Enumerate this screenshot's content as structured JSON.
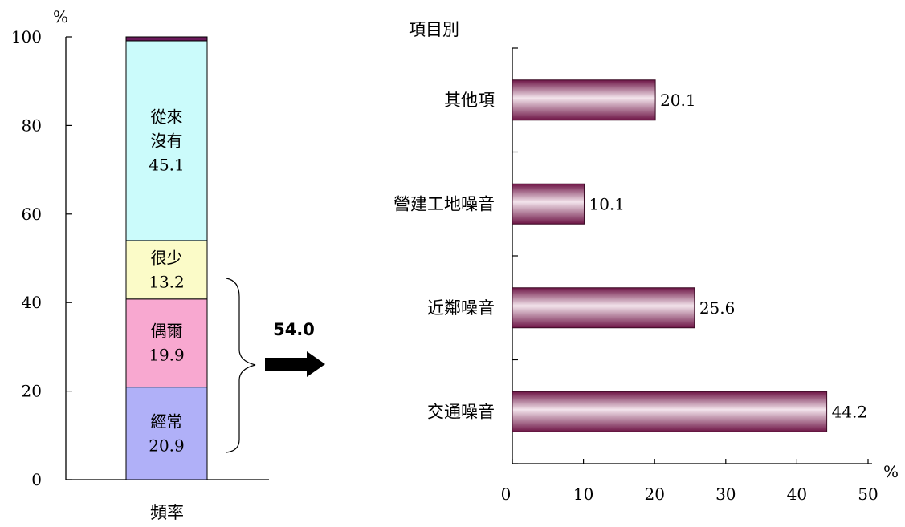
{
  "chart_data": [
    {
      "type": "bar",
      "stacked": true,
      "xlabel": "頻率",
      "ylabel": "%",
      "ylim": [
        0,
        100
      ],
      "yticks": [
        0,
        20,
        40,
        60,
        80,
        100
      ],
      "segments": [
        {
          "label": "經常",
          "value": 20.9,
          "color": "#b0b0f8"
        },
        {
          "label": "偶爾",
          "value": 19.9,
          "color": "#f8a8d0"
        },
        {
          "label": "很少",
          "value": 13.2,
          "color": "#fbfbc8"
        },
        {
          "label": "從來沒有",
          "value": 45.1,
          "color": "#cbfbfb"
        },
        {
          "label": "",
          "value": 0.9,
          "color": "#6a1a5a"
        }
      ],
      "segment_label_lines": [
        [
          "經常",
          "20.9"
        ],
        [
          "偶爾",
          "19.9"
        ],
        [
          "很少",
          "13.2"
        ],
        [
          "從來",
          "沒有",
          "45.1"
        ],
        []
      ],
      "bracket_total": "54.0"
    },
    {
      "type": "bar",
      "orientation": "horizontal",
      "title": "項目別",
      "xlabel": "%",
      "xlim": [
        0,
        50
      ],
      "xticks": [
        0,
        10,
        20,
        30,
        40,
        50
      ],
      "categories": [
        "其他項",
        "營建工地噪音",
        "近鄰噪音",
        "交通噪音"
      ],
      "values": [
        20.1,
        10.1,
        25.6,
        44.2
      ],
      "value_labels": [
        "20.1",
        "10.1",
        "25.6",
        "44.2"
      ],
      "bar_color": "#8a2a5e"
    }
  ]
}
